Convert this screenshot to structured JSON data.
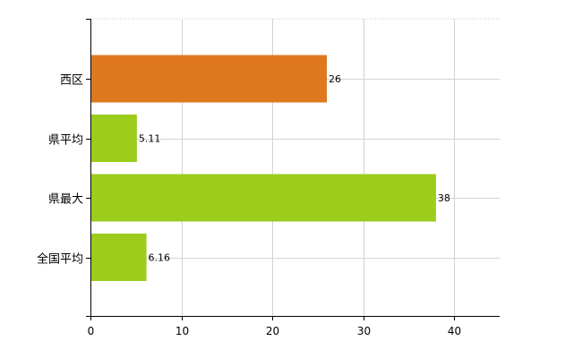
{
  "chart_data": {
    "type": "bar",
    "orientation": "horizontal",
    "categories": [
      "西区",
      "県平均",
      "県最大",
      "全国平均"
    ],
    "values": [
      26,
      5.11,
      38,
      6.16
    ],
    "data_labels": [
      "26",
      "5.11",
      "38",
      "6.16"
    ],
    "bar_colors": [
      "#e07820",
      "#9ccc1c",
      "#9ccc1c",
      "#9ccc1c"
    ],
    "xlim": [
      0,
      45
    ],
    "x_ticks": [
      0,
      10,
      20,
      30,
      40
    ],
    "title": "",
    "xlabel": "",
    "ylabel": "",
    "grid": true,
    "legend": "none"
  }
}
